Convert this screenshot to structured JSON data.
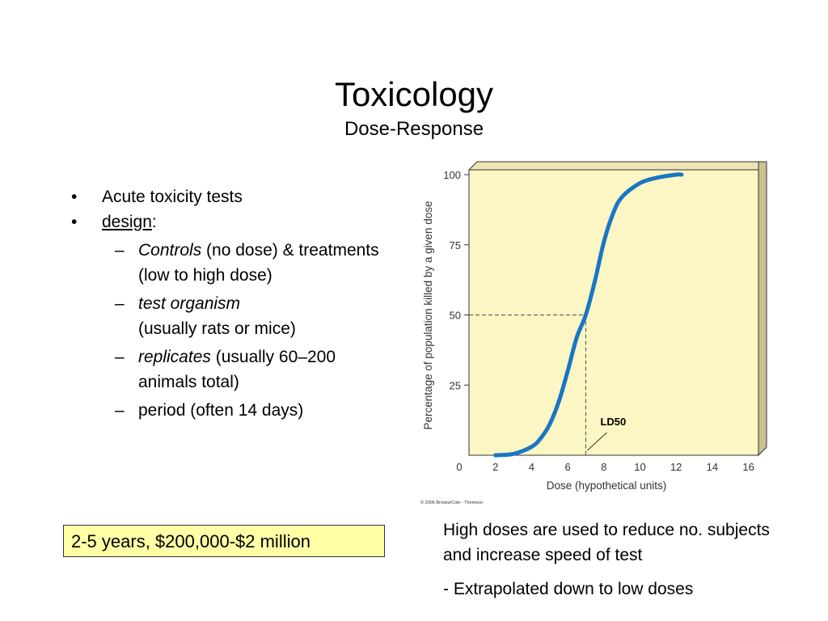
{
  "slide": {
    "title": "Toxicology",
    "subtitle": "Dose-Response"
  },
  "bullets": {
    "b1": "Acute toxicity tests",
    "b2_underlined": "design",
    "b2_rest": ":",
    "sub": [
      {
        "italic": "Controls",
        "text": " (no dose) & treatments (low to high dose)"
      },
      {
        "italic": "test organism",
        "text": "(usually rats or mice)"
      },
      {
        "italic": "replicates",
        "text": " (usually 60–200 animals total)"
      },
      {
        "italic": "",
        "text": "period (often 14 days)"
      }
    ]
  },
  "cost_box": "2-5 years, $200,000-$2 million",
  "notes": {
    "line1": "High doses are used to reduce no. subjects and increase speed of test",
    "line2": "- Extrapolated down to low doses"
  },
  "chart_data": {
    "type": "line",
    "xlabel": "Dose (hypothetical units)",
    "ylabel": "Percentage of population killed by a given dose",
    "x_ticks": [
      0,
      2,
      4,
      6,
      8,
      10,
      12,
      14,
      16
    ],
    "y_ticks": [
      25,
      50,
      75,
      100
    ],
    "xlim": [
      0,
      16
    ],
    "ylim": [
      0,
      100
    ],
    "annotation": "LD50",
    "ld50": {
      "x": 7,
      "y": 50
    },
    "credit": "© 2005 Brooks/Cole - Thomson",
    "colors": {
      "curve": "#1a76c4",
      "plot_bg": "#fbf6c4",
      "guide": "#666666"
    },
    "series": [
      {
        "x": [
          2,
          3,
          4,
          4.5,
          5,
          5.5,
          6,
          6.5,
          7,
          7.5,
          8,
          8.5,
          9,
          10,
          11,
          12,
          12.3
        ],
        "y": [
          0,
          0.5,
          3,
          6,
          11,
          19,
          30,
          42,
          50,
          62,
          76,
          86,
          92,
          97,
          99,
          100,
          100
        ]
      }
    ]
  }
}
